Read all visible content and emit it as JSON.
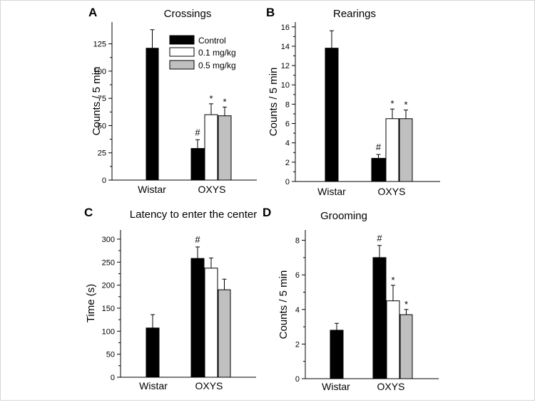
{
  "chart_data": [
    {
      "type": "bar",
      "panel": "A",
      "title": "Crossings",
      "xlabel": "",
      "ylabel": "Counts / 5 min",
      "ylim": [
        0,
        145
      ],
      "yticks": [
        0,
        25,
        50,
        75,
        100,
        125
      ],
      "categories": [
        "Wistar",
        "OXYS"
      ],
      "series": [
        {
          "name": "Control",
          "color": "#000000",
          "values": [
            121,
            29
          ],
          "errors": [
            17,
            8
          ],
          "annotations": [
            "",
            "#"
          ]
        },
        {
          "name": "0.1 mg/kg",
          "color": "#ffffff",
          "values": [
            null,
            60
          ],
          "errors": [
            null,
            10
          ],
          "annotations": [
            "",
            "*"
          ]
        },
        {
          "name": "0.5 mg/kg",
          "color": "#c0c0c0",
          "values": [
            null,
            59
          ],
          "errors": [
            null,
            8
          ],
          "annotations": [
            "",
            "*"
          ]
        }
      ],
      "legend": "top-right"
    },
    {
      "type": "bar",
      "panel": "B",
      "title": "Rearings",
      "xlabel": "",
      "ylabel": "Counts / 5 min",
      "ylim": [
        0,
        16.5
      ],
      "yticks": [
        0,
        2,
        4,
        6,
        8,
        10,
        12,
        14,
        16
      ],
      "categories": [
        "Wistar",
        "OXYS"
      ],
      "series": [
        {
          "name": "Control",
          "color": "#000000",
          "values": [
            13.8,
            2.4
          ],
          "errors": [
            1.8,
            0.4
          ],
          "annotations": [
            "",
            "#"
          ]
        },
        {
          "name": "0.1 mg/kg",
          "color": "#ffffff",
          "values": [
            null,
            6.5
          ],
          "errors": [
            null,
            1.0
          ],
          "annotations": [
            "",
            "*"
          ]
        },
        {
          "name": "0.5 mg/kg",
          "color": "#c0c0c0",
          "values": [
            null,
            6.5
          ],
          "errors": [
            null,
            0.9
          ],
          "annotations": [
            "",
            "*"
          ]
        }
      ]
    },
    {
      "type": "bar",
      "panel": "C",
      "title": "Latency to enter the center",
      "xlabel": "",
      "ylabel": "Time (s)",
      "ylim": [
        0,
        320
      ],
      "yticks": [
        0,
        50,
        100,
        150,
        200,
        250,
        300
      ],
      "categories": [
        "Wistar",
        "OXYS"
      ],
      "series": [
        {
          "name": "Control",
          "color": "#000000",
          "values": [
            107,
            258
          ],
          "errors": [
            29,
            25
          ],
          "annotations": [
            "",
            "#"
          ]
        },
        {
          "name": "0.1 mg/kg",
          "color": "#ffffff",
          "values": [
            null,
            237
          ],
          "errors": [
            null,
            22
          ],
          "annotations": [
            "",
            ""
          ]
        },
        {
          "name": "0.5 mg/kg",
          "color": "#c0c0c0",
          "values": [
            null,
            190
          ],
          "errors": [
            null,
            23
          ],
          "annotations": [
            "",
            ""
          ]
        }
      ]
    },
    {
      "type": "bar",
      "panel": "D",
      "title": "Grooming",
      "xlabel": "",
      "ylabel": "Counts / 5 min",
      "ylim": [
        0,
        8.6
      ],
      "yticks": [
        0,
        2,
        4,
        6,
        8
      ],
      "categories": [
        "Wistar",
        "OXYS"
      ],
      "series": [
        {
          "name": "Control",
          "color": "#000000",
          "values": [
            2.8,
            7.0
          ],
          "errors": [
            0.4,
            0.7
          ],
          "annotations": [
            "",
            "#"
          ]
        },
        {
          "name": "0.1 mg/kg",
          "color": "#ffffff",
          "values": [
            null,
            4.5
          ],
          "errors": [
            null,
            0.9
          ],
          "annotations": [
            "",
            "*"
          ]
        },
        {
          "name": "0.5 mg/kg",
          "color": "#c0c0c0",
          "values": [
            null,
            3.7
          ],
          "errors": [
            null,
            0.3
          ],
          "annotations": [
            "",
            "*"
          ]
        }
      ]
    }
  ]
}
